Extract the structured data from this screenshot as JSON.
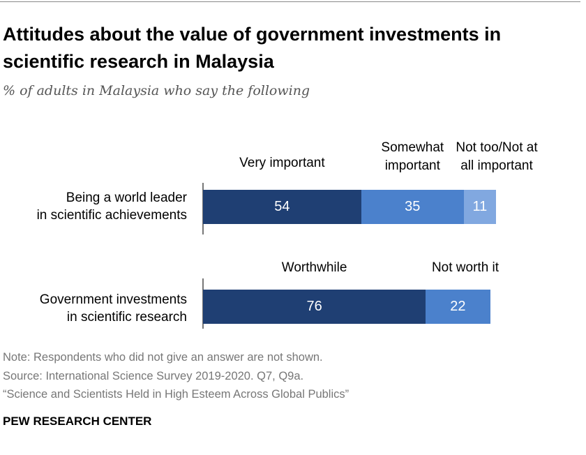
{
  "title": "Attitudes about the value of government investments in scientific research in Malaysia",
  "subtitle": "% of adults in Malaysia who say the following",
  "chart_data": {
    "type": "bar",
    "orientation": "horizontal",
    "stacked": true,
    "colors": [
      "#1f3f73",
      "#4b81cc",
      "#81a8e0"
    ],
    "rows": [
      {
        "label": "Being a world leader in scientific achievements",
        "categories": [
          "Very important",
          "Somewhat important",
          "Not too/Not at all important"
        ],
        "values": [
          54,
          35,
          11
        ]
      },
      {
        "label": "Government investments in scientific research",
        "categories": [
          "Worthwhile",
          "Not worth it"
        ],
        "values": [
          76,
          22
        ]
      }
    ],
    "xlim": [
      0,
      100
    ]
  },
  "notes": {
    "note": "Note: Respondents who did not give an answer are not shown.",
    "source": "Source: International Science Survey 2019-2020. Q7, Q9a.",
    "report": "“Science and Scientists Held in High Esteem Across Global Publics”"
  },
  "brand": "PEW RESEARCH CENTER"
}
